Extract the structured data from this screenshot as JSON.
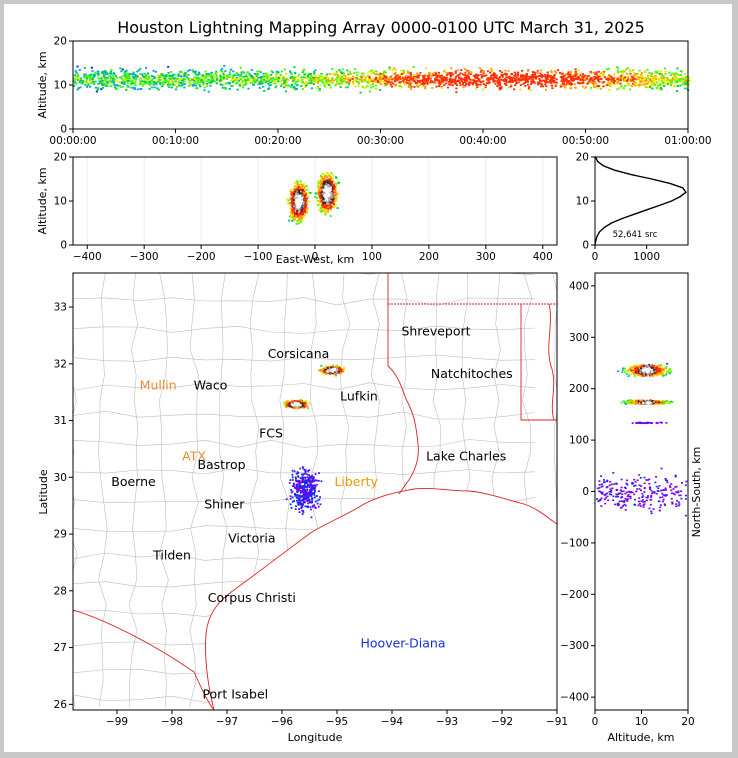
{
  "title": "Houston Lightning Mapping Array 0000-0100 UTC March 31, 2025",
  "chart_data": [
    {
      "type": "heatmap",
      "panel": "altitude-time",
      "xlabel": "",
      "ylabel": "Altitude, km",
      "xlim": [
        "00:00:00",
        "01:00:00"
      ],
      "xticks": [
        "00:00:00",
        "00:10:00",
        "00:20:00",
        "00:30:00",
        "00:40:00",
        "00:50:00",
        "01:00:00"
      ],
      "ylim": [
        0,
        20
      ],
      "yticks": [
        "0",
        "10",
        "20"
      ]
    },
    {
      "type": "heatmap",
      "panel": "east-west-altitude",
      "xlabel": "East-West, km",
      "ylabel": "Altitude, km",
      "xlim": [
        -425,
        425
      ],
      "xticks": [
        "−400",
        "−300",
        "−200",
        "−100",
        "0",
        "100",
        "200",
        "300",
        "400"
      ],
      "ylim": [
        0,
        20
      ],
      "yticks": [
        "0",
        "10",
        "20"
      ],
      "clusters": [
        {
          "x": -30,
          "alt": 10,
          "intensity": "high"
        },
        {
          "x": 20,
          "alt": 12,
          "intensity": "high"
        }
      ]
    },
    {
      "type": "line",
      "panel": "altitude-histogram",
      "xlim": [
        0,
        1800
      ],
      "xticks": [
        "0",
        "1000"
      ],
      "ylim": [
        0,
        20
      ],
      "yticks": [
        "0",
        "10",
        "20"
      ],
      "source_count_label": "52,641 src",
      "x": [
        0,
        15,
        40,
        90,
        180,
        320,
        520,
        760,
        1000,
        1250,
        1480,
        1650,
        1760,
        1700,
        1450,
        1100,
        700,
        380,
        160,
        50,
        10,
        0
      ],
      "y": [
        0,
        1,
        2,
        3,
        4,
        5,
        6,
        7,
        8,
        9,
        10,
        11,
        12,
        13,
        14,
        15,
        16,
        17,
        18,
        19,
        20,
        20
      ]
    },
    {
      "type": "scatter",
      "panel": "plan-view",
      "xlabel": "Longitude",
      "ylabel": "Latitude",
      "xlim": [
        -99.8,
        -91.0
      ],
      "ylim": [
        25.9,
        33.6
      ],
      "xticks": [
        "−99",
        "−98",
        "−97",
        "−96",
        "−95",
        "−94",
        "−93",
        "−92",
        "−91"
      ],
      "yticks": [
        "26",
        "27",
        "28",
        "29",
        "30",
        "31",
        "32",
        "33"
      ],
      "clusters": [
        {
          "lon": -95.1,
          "lat": 31.9,
          "intensity": "high"
        },
        {
          "lon": -95.75,
          "lat": 31.3,
          "intensity": "high"
        },
        {
          "lon": -95.6,
          "lat": 29.8,
          "intensity": "scattered"
        }
      ]
    },
    {
      "type": "heatmap",
      "panel": "altitude-north-south",
      "xlabel": "Altitude, km",
      "ylabel": "North-South, km",
      "xlim": [
        0,
        20
      ],
      "xticks": [
        "0",
        "10",
        "20"
      ],
      "ylim": [
        -425,
        425
      ],
      "yticks": [
        "−400",
        "−300",
        "−200",
        "−100",
        "0",
        "100",
        "200",
        "300",
        "400"
      ]
    }
  ],
  "map_labels": {
    "cities": [
      "Shreveport",
      "Corsicana",
      "Mullin",
      "Waco",
      "Natchitoches",
      "Lufkin",
      "FCS",
      "ATX",
      "Bastrop",
      "Lake Charles",
      "Boerne",
      "Liberty",
      "Shiner",
      "Victoria",
      "Tilden",
      "Corpus Christi",
      "Hoover-Diana",
      "Port Isabel"
    ],
    "colors": {
      "default": "#000000",
      "Mullin": "#ee8833",
      "ATX": "#ee8833",
      "Liberty": "#ee9900",
      "Hoover-Diana": "#1030e0"
    }
  },
  "colors": {
    "state_lines": "#dd2222",
    "county_lines": "#b8b8b8",
    "histogram_line": "#000000"
  }
}
